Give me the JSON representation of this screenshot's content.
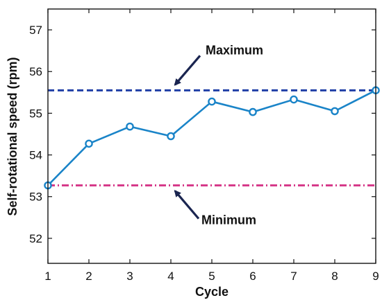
{
  "chart_data": {
    "type": "line",
    "title": "",
    "xlabel": "Cycle",
    "ylabel": "Self-rotational speed (rpm)",
    "xlim": [
      1,
      9
    ],
    "ylim": [
      51.4,
      57.5
    ],
    "x_ticks": [
      1,
      2,
      3,
      4,
      5,
      6,
      7,
      8,
      9
    ],
    "y_ticks": [
      52,
      53,
      54,
      55,
      56,
      57
    ],
    "grid": false,
    "series": [
      {
        "x": [
          1,
          2,
          3,
          4,
          5,
          6,
          7,
          8,
          9
        ],
        "values": [
          53.27,
          54.27,
          54.68,
          54.45,
          55.28,
          55.03,
          55.33,
          55.05,
          55.55
        ],
        "color": "#1a84c8",
        "marker": "circle"
      }
    ],
    "reference_lines": [
      {
        "label": "Maximum",
        "y": 55.55,
        "color": "#1f3fa6",
        "style": "dashed"
      },
      {
        "label": "Minimum",
        "y": 53.27,
        "color": "#d63a8a",
        "style": "dash-dot"
      }
    ],
    "annotations": [
      {
        "text": "Maximum",
        "arrow_to_x": 4,
        "arrow_to_y": 55.55
      },
      {
        "text": "Minimum",
        "arrow_to_x": 4,
        "arrow_to_y": 53.27
      }
    ],
    "colors": {
      "annotation": "#1a2550",
      "axis": "#111111"
    }
  }
}
